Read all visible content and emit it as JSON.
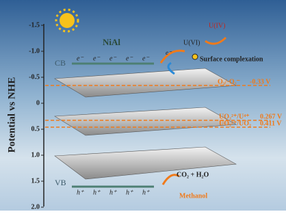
{
  "axis": {
    "label": "Potential vs NHE",
    "ticks": [
      "-1.5",
      "-1.0",
      "-0.5",
      "0",
      "0.5",
      "1.0",
      "1.5",
      "2.0"
    ]
  },
  "material": "NiAl",
  "cb": {
    "label": "CB",
    "electrons": [
      "e⁻",
      "e⁻",
      "e⁻",
      "e⁻",
      "e⁻"
    ]
  },
  "vb": {
    "label": "VB",
    "holes": [
      "h⁺",
      "h⁺",
      "h⁺",
      "h⁺",
      "h⁺"
    ]
  },
  "reaction": {
    "electron": "e⁻",
    "reactant": "U(VI)",
    "product": "U(IV)",
    "note": "Surface complexation"
  },
  "potentials": [
    {
      "couple": "O₂/·O₂⁻",
      "value": "-0.33 V"
    },
    {
      "couple": "UO₂²⁺/U⁴⁺",
      "value": "0.267 V"
    },
    {
      "couple": "UO₂²⁺/UO₂",
      "value": "0.411 V"
    }
  ],
  "oxidation": {
    "product": "CO₂ + H₂O",
    "reactant": "Methanol"
  }
}
